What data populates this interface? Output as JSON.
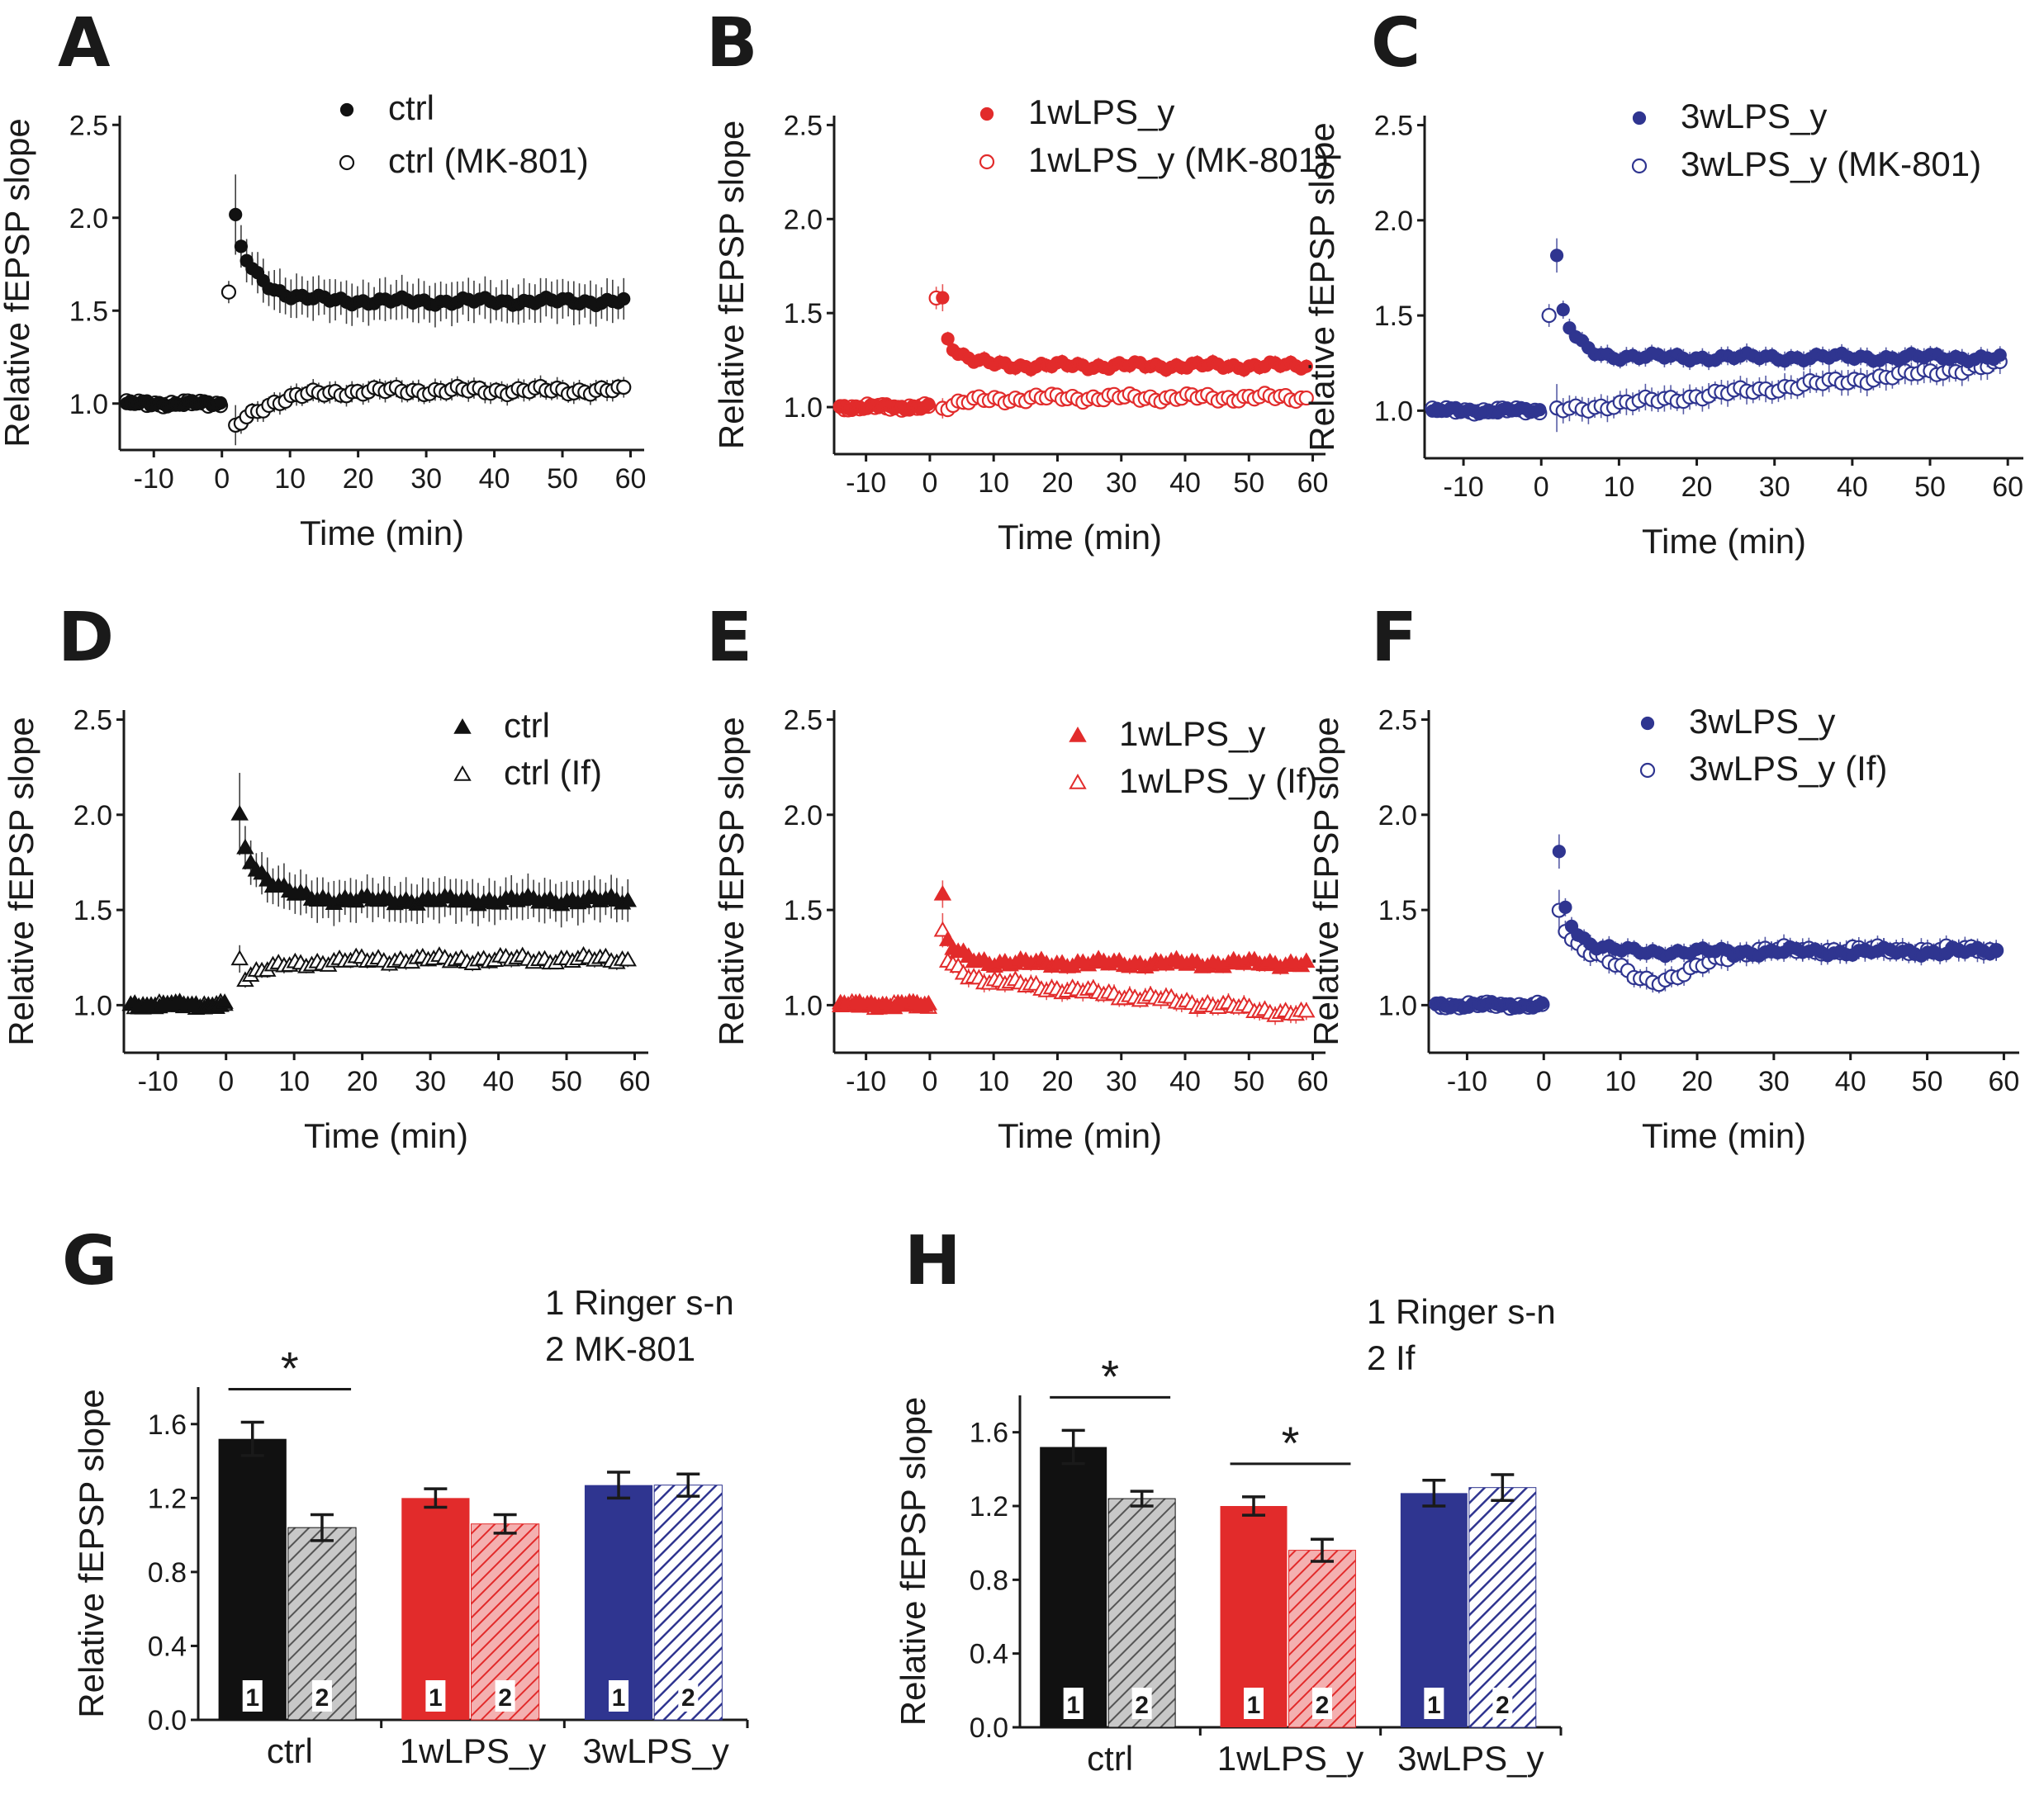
{
  "figure": {
    "colors": {
      "ctrl": "#111111",
      "wk1": "#e22b2b",
      "wk3": "#2f3590"
    }
  },
  "chart_data": [
    {
      "id": "A",
      "type": "scatter",
      "letter": "A",
      "legend_position": "top-right",
      "xlabel": "Time (min)",
      "ylabel": "Relative fEPSP slope",
      "xlim": [
        -15,
        62
      ],
      "ylim": [
        0.75,
        2.55
      ],
      "xticks": [
        "-10",
        "0",
        "10",
        "20",
        "30",
        "40",
        "50",
        "60"
      ],
      "yticks": [
        "1.0",
        "1.5",
        "2.0",
        "2.5"
      ],
      "series": [
        {
          "name": "ctrl",
          "color": "ctrl",
          "marker": "circle",
          "filled": true,
          "baseline": 1.0,
          "post_start": 2,
          "post_end": 59,
          "curve": {
            "plateau": 1.55,
            "amp": 0.35,
            "tau": 3.5,
            "slope": 0.0,
            "first": 2.0,
            "err": 0.12,
            "pts": 71
          }
        },
        {
          "name": "ctrl (MK-801)",
          "color": "ctrl",
          "marker": "circle",
          "filled": false,
          "baseline": 1.0,
          "post_start": 2,
          "post_end": 59,
          "early_point": [
            1,
            1.6
          ],
          "curve": {
            "plateau": 1.07,
            "amp": -0.2,
            "tau": 5,
            "slope": 0.0,
            "first": 0.87,
            "err": 0.06,
            "pts": 71
          }
        }
      ]
    },
    {
      "id": "B",
      "type": "scatter",
      "letter": "B",
      "legend_position": "top-right",
      "xlabel": "Time (min)",
      "ylabel": "Relative fEPSP slope",
      "xlim": [
        -15,
        62
      ],
      "ylim": [
        0.75,
        2.55
      ],
      "xticks": [
        "-10",
        "0",
        "10",
        "20",
        "30",
        "40",
        "50",
        "60"
      ],
      "yticks": [
        "1.0",
        "1.5",
        "2.0",
        "2.5"
      ],
      "series": [
        {
          "name": "1wLPS_y",
          "color": "wk1",
          "marker": "circle",
          "filled": true,
          "baseline": 1.0,
          "post_start": 2,
          "post_end": 59,
          "curve": {
            "plateau": 1.22,
            "amp": 0.2,
            "tau": 2.5,
            "slope": 0.0,
            "first": 1.58,
            "err": 0.04,
            "pts": 71
          }
        },
        {
          "name": "1wLPS_y (MK-801)",
          "color": "wk1",
          "marker": "circle",
          "filled": false,
          "baseline": 1.0,
          "post_start": 2,
          "post_end": 59,
          "early_point": [
            1,
            1.58
          ],
          "curve": {
            "plateau": 1.05,
            "amp": -0.05,
            "tau": 5,
            "slope": 0.0,
            "first": 1.0,
            "err": 0.03,
            "pts": 71
          }
        }
      ]
    },
    {
      "id": "C",
      "type": "scatter",
      "letter": "C",
      "legend_position": "top-right",
      "xlabel": "Time (min)",
      "ylabel": "Relative fEPSP slope",
      "xlim": [
        -15,
        62
      ],
      "ylim": [
        0.75,
        2.55
      ],
      "xticks": [
        "-10",
        "0",
        "10",
        "20",
        "30",
        "40",
        "50",
        "60"
      ],
      "yticks": [
        "1.0",
        "1.5",
        "2.0",
        "2.5"
      ],
      "series": [
        {
          "name": "3wLPS_y",
          "color": "wk3",
          "marker": "circle",
          "filled": true,
          "baseline": 1.0,
          "post_start": 2,
          "post_end": 59,
          "curve": {
            "plateau": 1.28,
            "amp": 0.35,
            "tau": 2,
            "slope": 0.0,
            "first": 1.8,
            "err": 0.05,
            "pts": 71
          }
        },
        {
          "name": "3wLPS_y (MK-801)",
          "color": "wk3",
          "marker": "circle",
          "filled": false,
          "baseline": 1.0,
          "post_start": 2,
          "post_end": 59,
          "early_point": [
            1,
            1.5
          ],
          "curve": {
            "plateau": 1.0,
            "amp": 0.0,
            "tau": 5,
            "slope": 0.0042,
            "first": 1.0,
            "err": 0.07,
            "pts": 71
          }
        }
      ]
    },
    {
      "id": "D",
      "type": "scatter",
      "letter": "D",
      "legend_position": "top-right",
      "xlabel": "Time (min)",
      "ylabel": "Relative fEPSP slope",
      "xlim": [
        -15,
        62
      ],
      "ylim": [
        0.75,
        2.55
      ],
      "xticks": [
        "-10",
        "0",
        "10",
        "20",
        "30",
        "40",
        "50",
        "60"
      ],
      "yticks": [
        "1.0",
        "1.5",
        "2.0",
        "2.5"
      ],
      "series": [
        {
          "name": "ctrl",
          "color": "ctrl",
          "marker": "triangle",
          "filled": true,
          "baseline": 1.0,
          "post_start": 2,
          "post_end": 59,
          "curve": {
            "plateau": 1.55,
            "amp": 0.35,
            "tau": 3.5,
            "slope": 0.0,
            "first": 2.0,
            "err": 0.12,
            "pts": 71
          }
        },
        {
          "name": "ctrl (If)",
          "color": "ctrl",
          "marker": "triangle",
          "filled": false,
          "baseline": 1.0,
          "post_start": 2,
          "post_end": 59,
          "curve": {
            "plateau": 1.24,
            "amp": -0.1,
            "tau": 6,
            "slope": 0.0,
            "first": 1.25,
            "err": 0.04,
            "pts": 71
          }
        }
      ]
    },
    {
      "id": "E",
      "type": "scatter",
      "letter": "E",
      "legend_position": "top-right",
      "xlabel": "Time (min)",
      "ylabel": "Relative fEPSP slope",
      "xlim": [
        -15,
        62
      ],
      "ylim": [
        0.75,
        2.55
      ],
      "xticks": [
        "-10",
        "0",
        "10",
        "20",
        "30",
        "40",
        "50",
        "60"
      ],
      "yticks": [
        "1.0",
        "1.5",
        "2.0",
        "2.5"
      ],
      "series": [
        {
          "name": "1wLPS_y",
          "color": "wk1",
          "marker": "triangle",
          "filled": true,
          "baseline": 1.0,
          "post_start": 2,
          "post_end": 59,
          "curve": {
            "plateau": 1.22,
            "amp": 0.15,
            "tau": 2.5,
            "slope": 0.0,
            "first": 1.57,
            "err": 0.04,
            "pts": 71
          }
        },
        {
          "name": "1wLPS_y (If)",
          "color": "wk1",
          "marker": "triangle",
          "filled": false,
          "baseline": 1.0,
          "post_start": 2,
          "post_end": 59,
          "curve": {
            "plateau": 1.15,
            "amp": 0.12,
            "tau": 2.5,
            "slope": -0.0035,
            "first": 1.38,
            "err": 0.05,
            "pts": 71
          }
        }
      ]
    },
    {
      "id": "F",
      "type": "scatter",
      "letter": "F",
      "legend_position": "top-right",
      "xlabel": "Time (min)",
      "ylabel": "Relative fEPSP slope",
      "xlim": [
        -15,
        62
      ],
      "ylim": [
        0.75,
        2.55
      ],
      "xticks": [
        "-10",
        "0",
        "10",
        "20",
        "30",
        "40",
        "50",
        "60"
      ],
      "yticks": [
        "1.0",
        "1.5",
        "2.0",
        "2.5"
      ],
      "series": [
        {
          "name": "3wLPS_y",
          "color": "wk3",
          "marker": "circle",
          "filled": true,
          "baseline": 1.0,
          "post_start": 2,
          "post_end": 59,
          "curve": {
            "plateau": 1.28,
            "amp": 0.35,
            "tau": 2,
            "slope": 0.0,
            "first": 1.8,
            "err": 0.05,
            "pts": 71
          }
        },
        {
          "name": "3wLPS_y (If)",
          "color": "wk3",
          "marker": "circle",
          "filled": false,
          "baseline": 1.0,
          "post_start": 2,
          "post_end": 59,
          "dip": true,
          "curve": {
            "plateau": 1.29,
            "amp": 0.0,
            "tau": 3,
            "slope": 0.0,
            "first": 1.5,
            "err": 0.06,
            "pts": 71
          }
        }
      ]
    },
    {
      "id": "G",
      "type": "bar",
      "letter": "G",
      "ylabel": "Relative fEPSP slope",
      "xlabel": "",
      "ylim": [
        0,
        1.8
      ],
      "yticks": [
        "0.0",
        "0.4",
        "0.8",
        "1.2",
        "1.6"
      ],
      "categories": [
        "ctrl",
        "1wLPS_y",
        "3wLPS_y"
      ],
      "legend": [
        "1 Ringer s-n",
        "2 MK-801"
      ],
      "bar_labels": [
        "1",
        "2"
      ],
      "series": [
        {
          "name": "Ringer s-n",
          "values": [
            1.52,
            1.2,
            1.27
          ],
          "errors": [
            0.09,
            0.05,
            0.07
          ]
        },
        {
          "name": "MK-801",
          "values": [
            1.04,
            1.06,
            1.27
          ],
          "errors": [
            0.07,
            0.05,
            0.06
          ]
        }
      ],
      "significance": [
        {
          "category": "ctrl",
          "label": "*"
        }
      ]
    },
    {
      "id": "H",
      "type": "bar",
      "letter": "H",
      "ylabel": "Relative fEPSP slope",
      "xlabel": "",
      "ylim": [
        0,
        1.8
      ],
      "yticks": [
        "0.0",
        "0.4",
        "0.8",
        "1.2",
        "1.6"
      ],
      "categories": [
        "ctrl",
        "1wLPS_y",
        "3wLPS_y"
      ],
      "legend": [
        "1 Ringer s-n",
        "2 If"
      ],
      "bar_labels": [
        "1",
        "2"
      ],
      "series": [
        {
          "name": "Ringer s-n",
          "values": [
            1.52,
            1.2,
            1.27
          ],
          "errors": [
            0.09,
            0.05,
            0.07
          ]
        },
        {
          "name": "If",
          "values": [
            1.24,
            0.96,
            1.3
          ],
          "errors": [
            0.04,
            0.06,
            0.07
          ]
        }
      ],
      "significance": [
        {
          "category": "ctrl",
          "label": "*"
        },
        {
          "category": "1wLPS_y",
          "label": "*"
        }
      ]
    }
  ]
}
